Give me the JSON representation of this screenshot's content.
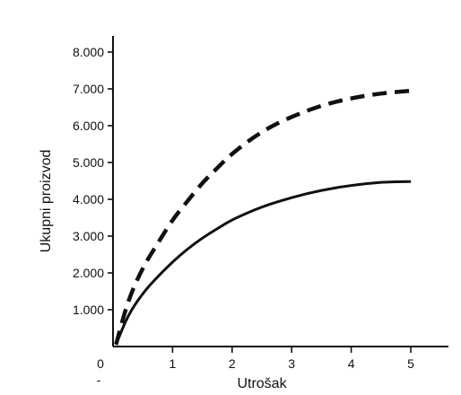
{
  "chart_data": {
    "type": "line",
    "title": "",
    "xlabel": "Utrošak",
    "ylabel": "Ukupni proizvod",
    "xlim": [
      0,
      5.6
    ],
    "ylim": [
      0,
      8500
    ],
    "x_ticks": [
      0,
      1,
      2,
      3,
      4,
      5
    ],
    "x_tick_labels": [
      "0",
      "1",
      "2",
      "3",
      "4",
      "5"
    ],
    "y_ticks": [
      1000,
      2000,
      3000,
      4000,
      5000,
      6000,
      7000,
      8000
    ],
    "y_tick_labels": [
      "1.000",
      "2.000",
      "3.000",
      "4.000",
      "5.000",
      "6.000",
      "7.000",
      "8.000"
    ],
    "extra_label": "-",
    "grid": false,
    "legend": "none",
    "series": [
      {
        "style": "dashed",
        "color": "#111111",
        "x": [
          0.05,
          0.25,
          0.5,
          0.75,
          1.0,
          1.25,
          1.5,
          1.75,
          2.0,
          2.5,
          3.0,
          3.5,
          4.0,
          4.5,
          5.0
        ],
        "y": [
          50,
          1250,
          2150,
          2800,
          3450,
          3950,
          4450,
          4850,
          5250,
          5850,
          6250,
          6550,
          6750,
          6880,
          6950
        ]
      },
      {
        "style": "solid",
        "color": "#111111",
        "x": [
          0.05,
          0.25,
          0.5,
          0.75,
          1.0,
          1.25,
          1.5,
          1.75,
          2.0,
          2.5,
          3.0,
          3.5,
          4.0,
          4.5,
          5.0
        ],
        "y": [
          50,
          850,
          1450,
          1900,
          2300,
          2650,
          2950,
          3200,
          3450,
          3800,
          4050,
          4250,
          4380,
          4470,
          4480
        ]
      }
    ]
  }
}
